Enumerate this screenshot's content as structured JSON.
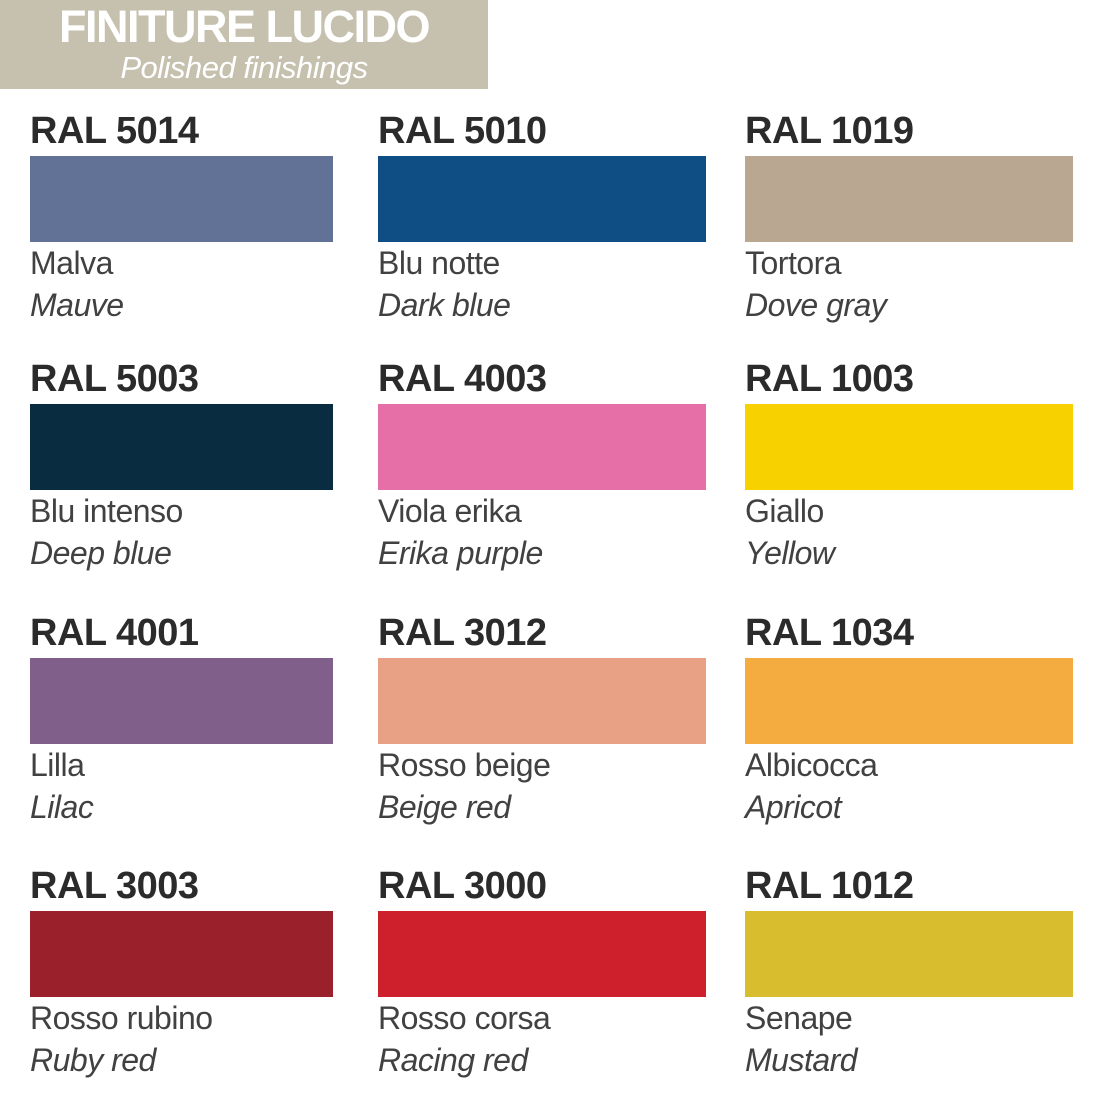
{
  "header": {
    "title": "FINITURE LUCIDO",
    "subtitle": "Polished finishings",
    "background": "#C6C1AE",
    "text_color": "#FFFFFF"
  },
  "swatches": [
    {
      "ral": "RAL 5014",
      "name_it": "Malva",
      "name_en": "Mauve",
      "color": "#617296"
    },
    {
      "ral": "RAL 5010",
      "name_it": "Blu notte",
      "name_en": "Dark blue",
      "color": "#0E4E84"
    },
    {
      "ral": "RAL 1019",
      "name_it": "Tortora",
      "name_en": "Dove gray",
      "color": "#B9A791"
    },
    {
      "ral": "RAL 5003",
      "name_it": "Blu intenso",
      "name_en": "Deep blue",
      "color": "#0A2C40"
    },
    {
      "ral": "RAL 4003",
      "name_it": "Viola erika",
      "name_en": "Erika purple",
      "color": "#E76FA7"
    },
    {
      "ral": "RAL 1003",
      "name_it": "Giallo",
      "name_en": "Yellow",
      "color": "#F8D200"
    },
    {
      "ral": "RAL 4001",
      "name_it": "Lilla",
      "name_en": "Lilac",
      "color": "#80608A"
    },
    {
      "ral": "RAL 3012",
      "name_it": "Rosso beige",
      "name_en": "Beige red",
      "color": "#E8A184"
    },
    {
      "ral": "RAL 1034",
      "name_it": "Albicocca",
      "name_en": "Apricot",
      "color": "#F4AC40"
    },
    {
      "ral": "RAL 3003",
      "name_it": "Rosso rubino",
      "name_en": "Ruby red",
      "color": "#9A202B"
    },
    {
      "ral": "RAL 3000",
      "name_it": "Rosso corsa",
      "name_en": "Racing red",
      "color": "#CD1F2C"
    },
    {
      "ral": "RAL 1012",
      "name_it": "Senape",
      "name_en": "Mustard",
      "color": "#D8BD2F"
    }
  ]
}
